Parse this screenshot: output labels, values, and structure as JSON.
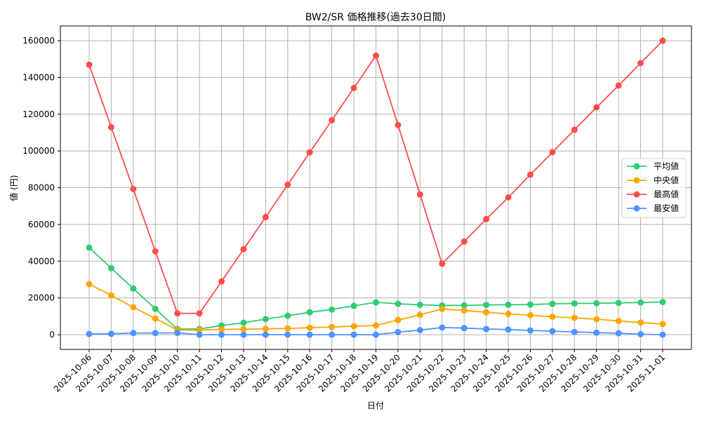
{
  "chart_data": {
    "type": "line",
    "title": "BW2/SR 価格推移(過去30日間)",
    "xlabel": "日付",
    "ylabel": "値 (円)",
    "ylim": [
      -8000,
      168000
    ],
    "yticks": [
      0,
      20000,
      40000,
      60000,
      80000,
      100000,
      120000,
      140000,
      160000
    ],
    "grid": true,
    "legend_position": "center right",
    "categories": [
      "2025-10-06",
      "2025-10-07",
      "2025-10-08",
      "2025-10-09",
      "2025-10-10",
      "2025-10-11",
      "2025-10-12",
      "2025-10-13",
      "2025-10-14",
      "2025-10-15",
      "2025-10-16",
      "2025-10-17",
      "2025-10-18",
      "2025-10-19",
      "2025-10-20",
      "2025-10-21",
      "2025-10-22",
      "2025-10-23",
      "2025-10-24",
      "2025-10-25",
      "2025-10-26",
      "2025-10-27",
      "2025-10-28",
      "2025-10-29",
      "2025-10-30",
      "2025-10-31",
      "2025-11-01"
    ],
    "series": [
      {
        "name": "平均値",
        "color": "#2ecc71",
        "values": [
          47400,
          36200,
          25100,
          14100,
          3100,
          3100,
          5000,
          6500,
          8500,
          10300,
          12200,
          13700,
          15700,
          17600,
          16800,
          16300,
          15900,
          16000,
          16200,
          16300,
          16400,
          16800,
          17000,
          17100,
          17300,
          17500,
          17800
        ]
      },
      {
        "name": "中央値",
        "color": "#ffa500",
        "values": [
          27500,
          21400,
          14900,
          8800,
          2600,
          2500,
          2900,
          3000,
          3200,
          3400,
          3800,
          4200,
          4600,
          5000,
          8000,
          10800,
          14000,
          13200,
          12200,
          11300,
          10600,
          9800,
          9200,
          8400,
          7500,
          6600,
          5800
        ]
      },
      {
        "name": "最高値",
        "color": "#ff4d4d",
        "values": [
          146900,
          112900,
          79300,
          45400,
          11600,
          11600,
          29000,
          46500,
          64000,
          81600,
          99200,
          116700,
          134300,
          151900,
          114100,
          76300,
          38600,
          50700,
          62900,
          74700,
          87100,
          99300,
          111500,
          123700,
          135600,
          147800,
          160000
        ]
      },
      {
        "name": "最安値",
        "color": "#4d94ff",
        "values": [
          400,
          500,
          900,
          900,
          1000,
          0,
          0,
          0,
          0,
          0,
          0,
          0,
          0,
          0,
          1400,
          2500,
          3900,
          3600,
          3100,
          2800,
          2300,
          1900,
          1500,
          1100,
          800,
          300,
          0
        ]
      }
    ]
  }
}
